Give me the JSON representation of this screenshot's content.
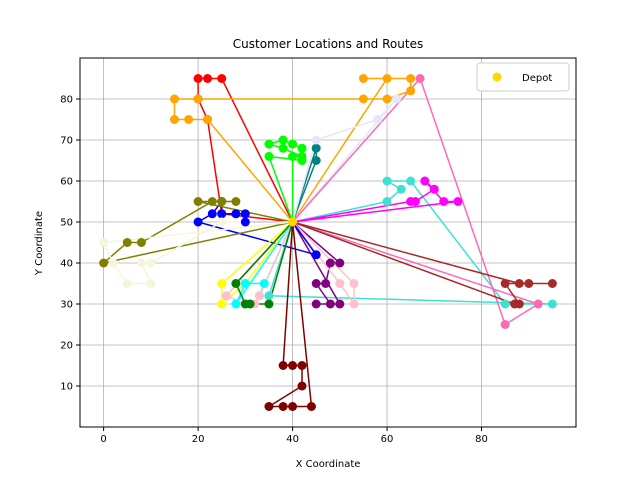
{
  "chart_data": {
    "type": "scatter",
    "title": "Customer Locations and Routes",
    "xlabel": "X Coordinate",
    "ylabel": "Y Coordinate",
    "xlim": [
      -5,
      100
    ],
    "ylim": [
      0,
      90
    ],
    "xticks": [
      0,
      20,
      40,
      60,
      80
    ],
    "yticks": [
      10,
      20,
      30,
      40,
      50,
      60,
      70,
      80
    ],
    "grid": true,
    "legend": {
      "position": "top-right",
      "entries": [
        {
          "label": "Depot",
          "color": "#ffd700"
        }
      ]
    },
    "depot": {
      "x": 40,
      "y": 50
    },
    "routes": [
      {
        "color": "#ff0000",
        "points": [
          [
            40,
            50
          ],
          [
            25,
            52
          ],
          [
            22,
            75
          ],
          [
            20,
            80
          ],
          [
            20,
            85
          ],
          [
            22,
            85
          ],
          [
            25,
            85
          ],
          [
            40,
            50
          ]
        ]
      },
      {
        "color": "#ffa500",
        "points": [
          [
            40,
            50
          ],
          [
            22,
            75
          ],
          [
            18,
            75
          ],
          [
            15,
            75
          ],
          [
            15,
            80
          ],
          [
            20,
            80
          ],
          [
            55,
            80
          ],
          [
            60,
            80
          ],
          [
            65,
            82
          ],
          [
            65,
            85
          ],
          [
            55,
            85
          ],
          [
            60,
            85
          ],
          [
            40,
            50
          ]
        ]
      },
      {
        "color": "#00ff00",
        "points": [
          [
            40,
            50
          ],
          [
            40,
            66
          ],
          [
            42,
            66
          ],
          [
            38,
            68
          ],
          [
            35,
            69
          ],
          [
            38,
            70
          ],
          [
            40,
            69
          ],
          [
            42,
            68
          ],
          [
            42,
            65
          ],
          [
            35,
            66
          ],
          [
            40,
            50
          ]
        ]
      },
      {
        "color": "#008080",
        "points": [
          [
            40,
            50
          ],
          [
            45,
            65
          ],
          [
            45,
            68
          ],
          [
            40,
            50
          ]
        ]
      },
      {
        "color": "#e6e6fa",
        "points": [
          [
            40,
            50
          ],
          [
            45,
            70
          ],
          [
            58,
            75
          ],
          [
            62,
            80
          ],
          [
            40,
            50
          ]
        ]
      },
      {
        "color": "#40e0d0",
        "points": [
          [
            40,
            50
          ],
          [
            60,
            55
          ],
          [
            63,
            58
          ],
          [
            60,
            60
          ],
          [
            65,
            60
          ],
          [
            85,
            30
          ],
          [
            92,
            30
          ],
          [
            95,
            30
          ],
          [
            35,
            32
          ],
          [
            40,
            50
          ]
        ]
      },
      {
        "color": "#ff00ff",
        "points": [
          [
            40,
            50
          ],
          [
            65,
            55
          ],
          [
            66,
            55
          ],
          [
            70,
            58
          ],
          [
            68,
            60
          ],
          [
            72,
            55
          ],
          [
            75,
            55
          ],
          [
            40,
            50
          ]
        ]
      },
      {
        "color": "#ff69b4",
        "points": [
          [
            40,
            50
          ],
          [
            67,
            85
          ],
          [
            85,
            25
          ],
          [
            92,
            30
          ],
          [
            40,
            50
          ]
        ]
      },
      {
        "color": "#a52a2a",
        "points": [
          [
            40,
            50
          ],
          [
            88,
            35
          ],
          [
            90,
            35
          ],
          [
            95,
            35
          ],
          [
            85,
            35
          ],
          [
            88,
            30
          ],
          [
            87,
            30
          ],
          [
            40,
            50
          ]
        ]
      },
      {
        "color": "#800080",
        "points": [
          [
            40,
            50
          ],
          [
            50,
            40
          ],
          [
            48,
            40
          ],
          [
            47,
            35
          ],
          [
            45,
            35
          ],
          [
            48,
            30
          ],
          [
            45,
            30
          ],
          [
            50,
            30
          ],
          [
            40,
            50
          ]
        ]
      },
      {
        "color": "#ffc0cb",
        "points": [
          [
            40,
            50
          ],
          [
            53,
            35
          ],
          [
            53,
            30
          ],
          [
            50,
            35
          ],
          [
            40,
            50
          ]
        ]
      },
      {
        "color": "#0000ff",
        "points": [
          [
            40,
            50
          ],
          [
            30,
            50
          ],
          [
            30,
            52
          ],
          [
            28,
            52
          ],
          [
            25,
            52
          ],
          [
            25,
            55
          ],
          [
            23,
            52
          ],
          [
            20,
            50
          ],
          [
            45,
            42
          ],
          [
            40,
            50
          ]
        ]
      },
      {
        "color": "#808000",
        "points": [
          [
            40,
            50
          ],
          [
            20,
            55
          ],
          [
            25,
            55
          ],
          [
            28,
            55
          ],
          [
            23,
            55
          ],
          [
            8,
            45
          ],
          [
            5,
            45
          ],
          [
            0,
            40
          ],
          [
            40,
            50
          ]
        ]
      },
      {
        "color": "#f5f5dc",
        "points": [
          [
            40,
            50
          ],
          [
            25,
            50
          ],
          [
            10,
            40
          ],
          [
            8,
            40
          ],
          [
            10,
            35
          ],
          [
            5,
            35
          ],
          [
            2,
            40
          ],
          [
            0,
            45
          ],
          [
            40,
            50
          ]
        ]
      },
      {
        "color": "#ffff00",
        "points": [
          [
            40,
            50
          ],
          [
            25,
            35
          ],
          [
            25,
            30
          ],
          [
            30,
            35
          ],
          [
            40,
            50
          ]
        ]
      },
      {
        "color": "#00ffff",
        "points": [
          [
            40,
            50
          ],
          [
            28,
            30
          ],
          [
            30,
            35
          ],
          [
            34,
            35
          ],
          [
            33,
            32
          ],
          [
            40,
            50
          ]
        ]
      },
      {
        "color": "#ffc0cb",
        "points": [
          [
            40,
            50
          ],
          [
            26,
            32
          ],
          [
            30,
            30
          ],
          [
            32,
            30
          ],
          [
            33,
            32
          ],
          [
            40,
            50
          ]
        ]
      },
      {
        "color": "#008000",
        "points": [
          [
            40,
            50
          ],
          [
            28,
            35
          ],
          [
            30,
            30
          ],
          [
            31,
            30
          ],
          [
            35,
            30
          ],
          [
            40,
            50
          ]
        ]
      },
      {
        "color": "#800000",
        "points": [
          [
            40,
            50
          ],
          [
            38,
            15
          ],
          [
            40,
            15
          ],
          [
            42,
            15
          ],
          [
            42,
            10
          ],
          [
            35,
            5
          ],
          [
            38,
            5
          ],
          [
            40,
            5
          ],
          [
            44,
            5
          ],
          [
            40,
            50
          ]
        ]
      }
    ]
  }
}
